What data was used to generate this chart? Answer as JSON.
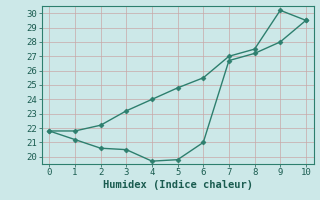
{
  "xlabel": "Humidex (Indice chaleur)",
  "x": [
    0,
    1,
    2,
    3,
    4,
    5,
    6,
    7,
    8,
    9,
    10
  ],
  "line1_y": [
    21.8,
    21.8,
    22.2,
    23.2,
    24.0,
    24.8,
    25.5,
    27.0,
    27.5,
    30.2,
    29.5
  ],
  "line2_y": [
    21.8,
    21.2,
    20.6,
    20.5,
    19.7,
    19.8,
    21.0,
    26.7,
    27.2,
    28.0,
    29.5
  ],
  "line_color": "#2d7f6e",
  "bg_color": "#cce8e8",
  "grid_color": "#b8d4d4",
  "xlim": [
    -0.3,
    10.3
  ],
  "ylim": [
    19.5,
    30.5
  ],
  "yticks": [
    20,
    21,
    22,
    23,
    24,
    25,
    26,
    27,
    28,
    29,
    30
  ],
  "xticks": [
    0,
    1,
    2,
    3,
    4,
    5,
    6,
    7,
    8,
    9,
    10
  ],
  "marker": "D",
  "markersize": 2.5,
  "linewidth": 1.0,
  "tick_fontsize": 6.5,
  "xlabel_fontsize": 7.5
}
